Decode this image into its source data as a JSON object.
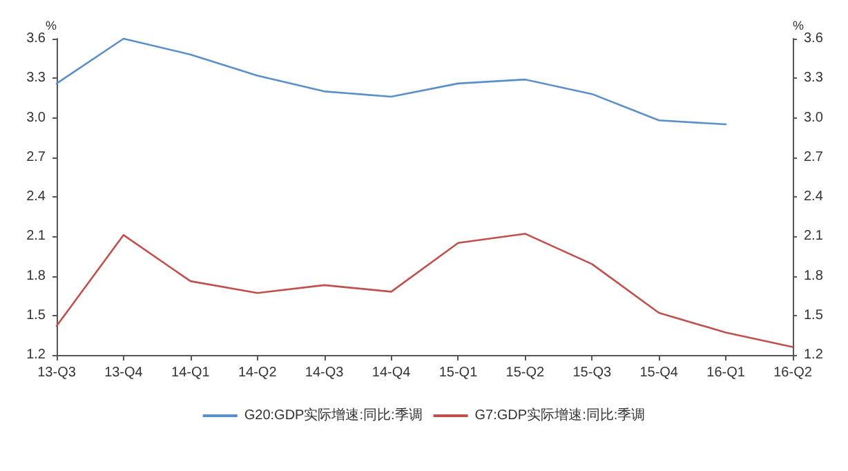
{
  "chart_data": {
    "type": "line",
    "ylabel": "%",
    "y2label": "%",
    "categories": [
      "13-Q3",
      "13-Q4",
      "14-Q1",
      "14-Q2",
      "14-Q3",
      "14-Q4",
      "15-Q1",
      "15-Q2",
      "15-Q3",
      "15-Q4",
      "16-Q1",
      "16-Q2"
    ],
    "series": [
      {
        "name": "G20:GDP实际增速:同比:季调",
        "color": "#5b8fc9",
        "values": [
          3.26,
          3.6,
          3.48,
          3.32,
          3.2,
          3.16,
          3.26,
          3.29,
          3.18,
          2.98,
          2.95,
          null
        ]
      },
      {
        "name": "G7:GDP实际增速:同比:季调",
        "color": "#c0504d",
        "values": [
          1.42,
          2.11,
          1.76,
          1.67,
          1.73,
          1.68,
          2.05,
          2.12,
          1.89,
          1.52,
          1.37,
          1.26
        ]
      }
    ],
    "ylim": [
      1.2,
      3.6
    ],
    "yticks": [
      1.2,
      1.5,
      1.8,
      2.1,
      2.4,
      2.7,
      {
        "value": 3,
        "label": "3.0"
      },
      3.3,
      3.6
    ],
    "y2lim": [
      1.2,
      3.6
    ],
    "y2ticks": [
      1.2,
      1.5,
      1.8,
      2.1,
      2.4,
      2.7,
      {
        "value": 3,
        "label": "3.0"
      },
      3.3,
      3.6
    ],
    "grid": false,
    "legend": "bottom",
    "marker": "none",
    "line_style": "solid"
  }
}
